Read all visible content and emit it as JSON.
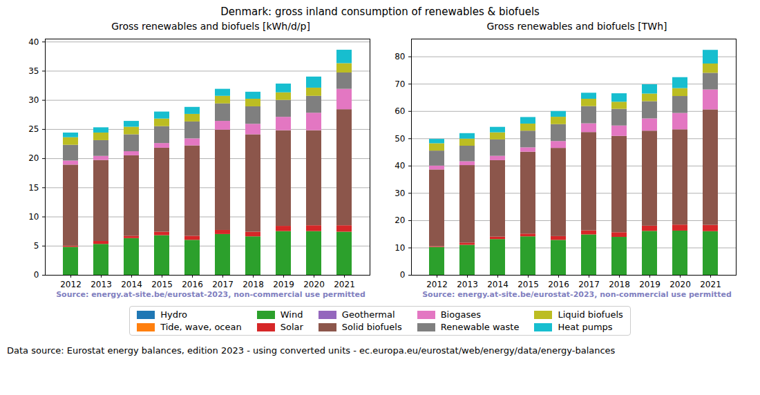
{
  "suptitle": "Denmark: gross inland consumption of renewables & biofuels",
  "footer": "Data source: Eurostat energy balances, edition 2023 - using converted units - ec.europa.eu/eurostat/web/energy/data/energy-balances",
  "chart_data": [
    {
      "type": "bar",
      "stacked": true,
      "grid": true,
      "title": "Gross renewables and biofuels [kWh/d/p]",
      "source": "Source: energy.at-site.be/eurostat-2023, non-commercial use permitted",
      "categories": [
        "2012",
        "2013",
        "2014",
        "2015",
        "2016",
        "2017",
        "2018",
        "2019",
        "2020",
        "2021"
      ],
      "ylim": [
        0,
        40.5
      ],
      "yticks": [
        0,
        5,
        10,
        15,
        20,
        25,
        30,
        35,
        40
      ],
      "series": [
        {
          "name": "Hydro",
          "color": "#1f77b4",
          "values": [
            0,
            0,
            0,
            0,
            0,
            0,
            0,
            0,
            0,
            0
          ]
        },
        {
          "name": "Tide, wave, ocean",
          "color": "#ff7f0e",
          "values": [
            0,
            0,
            0,
            0,
            0,
            0,
            0,
            0,
            0,
            0
          ]
        },
        {
          "name": "Wind",
          "color": "#2ca02c",
          "values": [
            4.8,
            5.3,
            6.3,
            6.8,
            6.0,
            7.0,
            6.6,
            7.5,
            7.5,
            7.4
          ]
        },
        {
          "name": "Solar",
          "color": "#d62728",
          "values": [
            0.2,
            0.5,
            0.4,
            0.6,
            0.7,
            0.7,
            0.8,
            0.9,
            1.0,
            1.1
          ]
        },
        {
          "name": "Geothermal",
          "color": "#9467bd",
          "values": [
            0,
            0,
            0,
            0,
            0,
            0,
            0,
            0,
            0,
            0
          ]
        },
        {
          "name": "Solid biofuels",
          "color": "#8c564b",
          "values": [
            13.9,
            13.9,
            13.8,
            14.4,
            15.5,
            17.2,
            16.7,
            16.4,
            16.3,
            19.9
          ]
        },
        {
          "name": "Biogases",
          "color": "#e377c2",
          "values": [
            0.7,
            0.7,
            0.7,
            0.8,
            1.2,
            1.5,
            1.8,
            2.3,
            3.0,
            3.5
          ]
        },
        {
          "name": "Renewable waste",
          "color": "#7f7f7f",
          "values": [
            2.7,
            2.7,
            2.9,
            2.9,
            2.9,
            3.0,
            3.0,
            2.9,
            2.9,
            2.8
          ]
        },
        {
          "name": "Liquid biofuels",
          "color": "#bcbd22",
          "values": [
            1.3,
            1.3,
            1.3,
            1.3,
            1.3,
            1.3,
            1.3,
            1.3,
            1.4,
            1.6
          ]
        },
        {
          "name": "Heat pumps",
          "color": "#17becf",
          "values": [
            0.8,
            0.9,
            1.0,
            1.2,
            1.2,
            1.2,
            1.2,
            1.5,
            1.9,
            2.3
          ]
        }
      ]
    },
    {
      "type": "bar",
      "stacked": true,
      "grid": true,
      "title": "Gross renewables and biofuels [TWh]",
      "source": "Source: energy.at-site.be/eurostat-2023, non-commercial use permitted",
      "categories": [
        "2012",
        "2013",
        "2014",
        "2015",
        "2016",
        "2017",
        "2018",
        "2019",
        "2020",
        "2021"
      ],
      "ylim": [
        0,
        86.5
      ],
      "yticks": [
        0,
        10,
        20,
        30,
        40,
        50,
        60,
        70,
        80
      ],
      "series": [
        {
          "name": "Hydro",
          "color": "#1f77b4",
          "values": [
            0,
            0,
            0,
            0,
            0,
            0,
            0,
            0,
            0,
            0
          ]
        },
        {
          "name": "Tide, wave, ocean",
          "color": "#ff7f0e",
          "values": [
            0,
            0,
            0,
            0,
            0,
            0,
            0,
            0,
            0,
            0
          ]
        },
        {
          "name": "Wind",
          "color": "#2ca02c",
          "values": [
            10.2,
            11.0,
            13.1,
            14.1,
            12.8,
            14.8,
            13.9,
            16.1,
            16.2,
            16.0
          ]
        },
        {
          "name": "Solar",
          "color": "#d62728",
          "values": [
            0.3,
            0.8,
            0.9,
            1.0,
            1.4,
            1.5,
            1.7,
            1.9,
            2.2,
            2.3
          ]
        },
        {
          "name": "Geothermal",
          "color": "#9467bd",
          "values": [
            0,
            0,
            0,
            0,
            0,
            0,
            0,
            0,
            0,
            0
          ]
        },
        {
          "name": "Solid biofuels",
          "color": "#8c564b",
          "values": [
            28.1,
            28.4,
            28.0,
            30.0,
            32.3,
            36.0,
            35.3,
            34.8,
            34.9,
            42.3
          ]
        },
        {
          "name": "Biogases",
          "color": "#e377c2",
          "values": [
            1.4,
            1.4,
            1.6,
            1.6,
            2.5,
            3.2,
            3.8,
            4.5,
            6.0,
            7.3
          ]
        },
        {
          "name": "Renewable waste",
          "color": "#7f7f7f",
          "values": [
            5.5,
            5.7,
            6.0,
            6.1,
            6.2,
            6.3,
            6.1,
            6.3,
            6.2,
            6.1
          ]
        },
        {
          "name": "Liquid biofuels",
          "color": "#bcbd22",
          "values": [
            2.7,
            2.6,
            2.6,
            2.6,
            2.7,
            2.7,
            2.6,
            2.8,
            2.9,
            3.4
          ]
        },
        {
          "name": "Heat pumps",
          "color": "#17becf",
          "values": [
            1.6,
            2.0,
            2.0,
            2.4,
            2.1,
            2.2,
            3.1,
            3.4,
            4.0,
            5.0
          ]
        }
      ]
    }
  ]
}
